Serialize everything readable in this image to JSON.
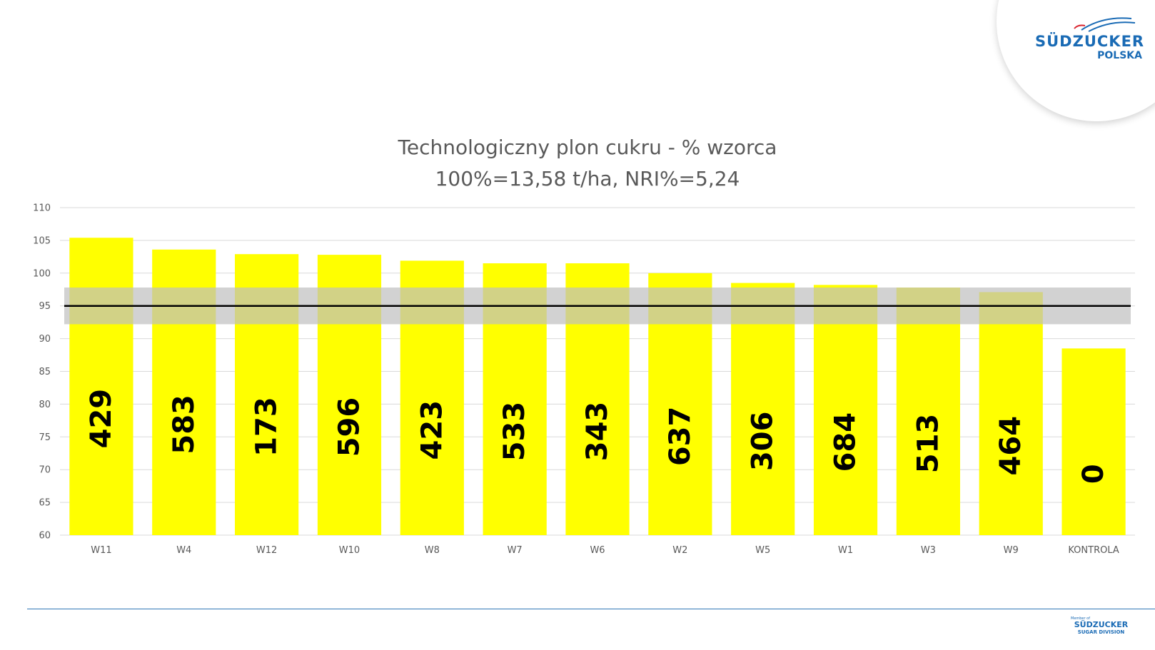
{
  "logo": {
    "brand": "SÜDZUCKER",
    "sub": "POLSKA"
  },
  "footer_logo": {
    "member": "Member of",
    "brand": "SÜDZUCKER",
    "division": "SUGAR DIVISION"
  },
  "colors": {
    "bar": "#ffff00",
    "band": "#bfbfbf",
    "refline": "#000000",
    "accent": "#2e75b6"
  },
  "chart_data": {
    "type": "bar",
    "title": "Technologiczny plon cukru - % wzorca",
    "subtitle": "100%=13,58 t/ha, NRI%=5,24",
    "categories": [
      "W11",
      "W4",
      "W12",
      "W10",
      "W8",
      "W7",
      "W6",
      "W2",
      "W5",
      "W1",
      "W3",
      "W9",
      "KONTROLA"
    ],
    "values": [
      105.4,
      103.6,
      102.9,
      102.8,
      101.9,
      101.5,
      101.5,
      100.0,
      98.5,
      98.2,
      97.8,
      97.1,
      88.5
    ],
    "bar_labels": [
      "429",
      "583",
      "173",
      "596",
      "423",
      "533",
      "343",
      "637",
      "306",
      "684",
      "513",
      "464",
      "0"
    ],
    "ylim": [
      60,
      110
    ],
    "yticks": [
      60,
      65,
      70,
      75,
      80,
      85,
      90,
      95,
      100,
      105,
      110
    ],
    "reference_line": 95,
    "band": [
      92.2,
      97.8
    ],
    "grid": true
  }
}
